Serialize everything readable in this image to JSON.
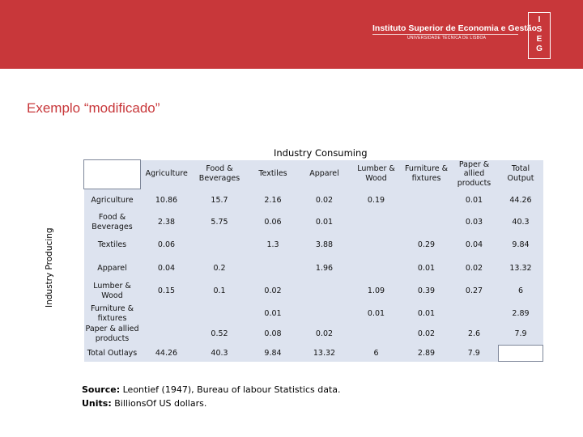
{
  "header": {
    "institution_name": "Instituto Superior de Economia e Gestão",
    "institution_sub": "UNIVERSIDADE TÉCNICA DE LISBOA",
    "logo_letters": [
      "I",
      "S",
      "E",
      "G"
    ],
    "brand_color": "#c8373a"
  },
  "slide": {
    "title": "Exemplo “modificado”"
  },
  "table": {
    "consuming_label": "Industry Consuming",
    "producing_label": "Industry Producing",
    "columns": [
      "Agriculture",
      "Food & Beverages",
      "Textiles",
      "Apparel",
      "Lumber & Wood",
      "Furniture & fixtures",
      "Paper & allied products",
      "Total Output"
    ],
    "rows": [
      {
        "label": "Agriculture",
        "cells": [
          "10.86",
          "15.7",
          "2.16",
          "0.02",
          "0.19",
          "",
          "0.01",
          "44.26"
        ]
      },
      {
        "label": "Food & Beverages",
        "cells": [
          "2.38",
          "5.75",
          "0.06",
          "0.01",
          "",
          "",
          "0.03",
          "40.3"
        ]
      },
      {
        "label": "Textiles",
        "cells": [
          "0.06",
          "",
          "1.3",
          "3.88",
          "",
          "0.29",
          "0.04",
          "9.84"
        ]
      },
      {
        "label": "Apparel",
        "cells": [
          "0.04",
          "0.2",
          "",
          "1.96",
          "",
          "0.01",
          "0.02",
          "13.32"
        ]
      },
      {
        "label": "Lumber & Wood",
        "cells": [
          "0.15",
          "0.1",
          "0.02",
          "",
          "1.09",
          "0.39",
          "0.27",
          "6"
        ]
      },
      {
        "label": "Furniture & fixtures",
        "cells": [
          "",
          "",
          "0.01",
          "",
          "0.01",
          "0.01",
          "",
          "2.89"
        ]
      },
      {
        "label": "Paper & allied products",
        "cells": [
          "",
          "0.52",
          "0.08",
          "0.02",
          "",
          "0.02",
          "2.6",
          "7.9"
        ]
      },
      {
        "label": "Total Outlays",
        "cells": [
          "44.26",
          "40.3",
          "9.84",
          "13.32",
          "6",
          "2.89",
          "7.9",
          ""
        ]
      }
    ]
  },
  "source": {
    "source_label": "Source:",
    "source_text": "Leontief (1947), Bureau of labour Statistics data.",
    "units_label": "Units:",
    "units_text": "BillionsOf US dollars."
  }
}
